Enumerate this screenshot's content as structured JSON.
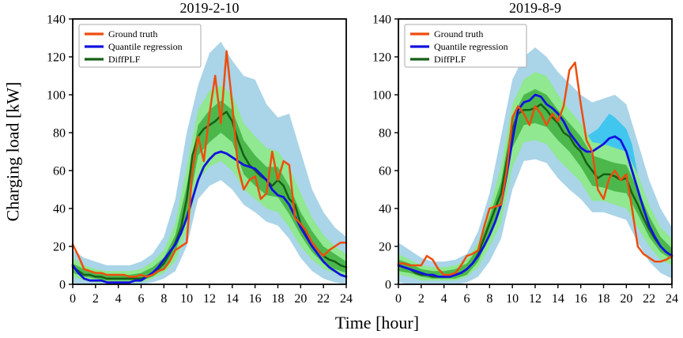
{
  "figure": {
    "ylabel": "Charging load [kW]",
    "xlabel": "Time [hour]",
    "background": "#ffffff",
    "colors": {
      "ground_truth": "#ee4d0d",
      "quantile": "#1212e0",
      "diffplf": "#166016",
      "band_outer": "#aad4e8",
      "band_mid": "#90e890",
      "band_inner": "#4cb84c",
      "band_cyan": "#2fc3f0"
    }
  },
  "chart_data": [
    {
      "type": "line",
      "title": "2019-2-10",
      "xlabel": "Time [hour]",
      "ylabel": "Charging load [kW]",
      "xlim": [
        0,
        24
      ],
      "ylim": [
        0,
        140
      ],
      "xticks": [
        0,
        2,
        4,
        6,
        8,
        10,
        12,
        14,
        16,
        18,
        20,
        22,
        24
      ],
      "yticks": [
        0,
        20,
        40,
        60,
        80,
        100,
        120,
        140
      ],
      "x_step": 0.5,
      "grid": false,
      "legend_position": "upper-left",
      "series": [
        {
          "name": "Ground truth",
          "color_key": "ground_truth",
          "values": [
            21,
            15,
            8,
            7,
            6,
            6,
            5,
            5,
            5,
            5,
            4,
            4,
            5,
            4,
            5,
            7,
            8,
            12,
            18,
            20,
            22,
            60,
            78,
            65,
            90,
            110,
            85,
            123,
            95,
            62,
            50,
            55,
            57,
            45,
            48,
            70,
            55,
            65,
            63,
            35,
            32,
            28,
            22,
            18,
            15,
            18,
            20,
            22,
            22
          ]
        },
        {
          "name": "Quantile regression",
          "color_key": "quantile",
          "values": [
            10,
            6,
            3,
            2,
            2,
            2,
            1,
            1,
            1,
            1,
            1,
            2,
            2,
            4,
            6,
            9,
            13,
            17,
            21,
            27,
            35,
            45,
            55,
            62,
            66,
            69,
            70,
            69,
            67,
            65,
            63,
            62,
            61,
            58,
            55,
            50,
            47,
            46,
            42,
            36,
            30,
            25,
            20,
            16,
            12,
            9,
            7,
            5,
            4
          ]
        },
        {
          "name": "DiffPLF",
          "color_key": "diffplf",
          "values": [
            9,
            7,
            5,
            5,
            4,
            4,
            3,
            3,
            3,
            3,
            3,
            3,
            3,
            4,
            6,
            8,
            11,
            16,
            22,
            30,
            45,
            68,
            78,
            82,
            84,
            86,
            89,
            91,
            86,
            76,
            68,
            63,
            60,
            57,
            55,
            52,
            55,
            52,
            45,
            42,
            32,
            26,
            22,
            18,
            15,
            13,
            12,
            10,
            9
          ]
        }
      ],
      "bands": [
        {
          "name": "outer-prediction-interval",
          "color_key": "band_outer",
          "x_step": 1,
          "lower": [
            0,
            0,
            0,
            0,
            0,
            0,
            0,
            1,
            3,
            7,
            20,
            45,
            52,
            55,
            50,
            42,
            38,
            33,
            31,
            24,
            14,
            7,
            3,
            1,
            0
          ],
          "upper": [
            18,
            14,
            12,
            10,
            10,
            10,
            12,
            16,
            25,
            45,
            80,
            105,
            122,
            128,
            118,
            110,
            108,
            95,
            88,
            90,
            70,
            50,
            38,
            30,
            25
          ]
        },
        {
          "name": "mid-prediction-interval",
          "color_key": "band_mid",
          "x_step": 1,
          "lower": [
            4,
            2,
            1,
            1,
            1,
            1,
            1,
            3,
            6,
            12,
            28,
            55,
            62,
            65,
            60,
            50,
            45,
            40,
            38,
            30,
            20,
            13,
            8,
            6,
            4
          ],
          "upper": [
            14,
            10,
            8,
            7,
            7,
            7,
            8,
            12,
            18,
            32,
            62,
            92,
            102,
            105,
            100,
            85,
            78,
            72,
            70,
            62,
            48,
            35,
            26,
            20,
            16
          ]
        },
        {
          "name": "inner-prediction-interval",
          "color_key": "band_inner",
          "x_step": 1,
          "lower": [
            6,
            4,
            3,
            2,
            2,
            2,
            2,
            4,
            8,
            17,
            36,
            68,
            75,
            80,
            75,
            58,
            52,
            47,
            46,
            37,
            26,
            17,
            11,
            8,
            6
          ],
          "upper": [
            11,
            8,
            6,
            5,
            5,
            5,
            6,
            9,
            14,
            26,
            52,
            84,
            92,
            97,
            92,
            76,
            68,
            62,
            62,
            52,
            38,
            28,
            20,
            16,
            12
          ]
        }
      ]
    },
    {
      "type": "line",
      "title": "2019-8-9",
      "xlabel": "Time [hour]",
      "ylabel": "Charging load [kW]",
      "xlim": [
        0,
        24
      ],
      "ylim": [
        0,
        140
      ],
      "xticks": [
        0,
        2,
        4,
        6,
        8,
        10,
        12,
        14,
        16,
        18,
        20,
        22,
        24
      ],
      "yticks": [
        0,
        20,
        40,
        60,
        80,
        100,
        120,
        140
      ],
      "x_step": 0.5,
      "grid": false,
      "legend_position": "upper-left",
      "series": [
        {
          "name": "Ground truth",
          "color_key": "ground_truth",
          "values": [
            11,
            11,
            10,
            10,
            10,
            15,
            13,
            8,
            5,
            5,
            6,
            10,
            15,
            16,
            18,
            30,
            40,
            41,
            42,
            60,
            88,
            94,
            90,
            84,
            94,
            90,
            84,
            90,
            86,
            94,
            113,
            117,
            95,
            76,
            70,
            50,
            45,
            56,
            60,
            55,
            58,
            40,
            20,
            16,
            14,
            12,
            12,
            13,
            15
          ]
        },
        {
          "name": "Quantile regression",
          "color_key": "quantile",
          "values": [
            10,
            9,
            8,
            7,
            6,
            5,
            5,
            4,
            4,
            4,
            5,
            6,
            8,
            11,
            15,
            20,
            26,
            33,
            42,
            58,
            76,
            92,
            96,
            97,
            100,
            99,
            95,
            93,
            90,
            86,
            80,
            76,
            72,
            70,
            70,
            72,
            74,
            77,
            78,
            76,
            70,
            60,
            50,
            40,
            31,
            25,
            20,
            17,
            15
          ]
        },
        {
          "name": "DiffPLF",
          "color_key": "diffplf",
          "values": [
            10,
            9,
            8,
            6,
            5,
            5,
            4,
            4,
            4,
            4,
            5,
            6,
            8,
            11,
            16,
            24,
            32,
            40,
            48,
            65,
            82,
            90,
            92,
            92,
            93,
            95,
            92,
            88,
            85,
            80,
            78,
            73,
            70,
            64,
            60,
            56,
            58,
            58,
            57,
            55,
            56,
            48,
            42,
            35,
            29,
            24,
            20,
            17,
            15
          ]
        }
      ],
      "bands": [
        {
          "name": "outer-prediction-interval",
          "color_key": "band_outer",
          "x_step": 1,
          "lower": [
            1,
            0,
            0,
            0,
            0,
            0,
            1,
            4,
            12,
            24,
            50,
            65,
            66,
            64,
            56,
            50,
            45,
            38,
            38,
            36,
            34,
            22,
            12,
            6,
            3
          ],
          "upper": [
            22,
            18,
            14,
            12,
            12,
            13,
            16,
            28,
            48,
            78,
            108,
            120,
            125,
            120,
            112,
            106,
            100,
            96,
            98,
            100,
            95,
            75,
            55,
            40,
            30
          ]
        },
        {
          "name": "highlight-interval",
          "color_key": "band_cyan",
          "opacity": 0.85,
          "x": [
            16.5,
            17,
            17.5,
            18,
            18.5,
            19,
            19.5,
            20,
            20.5,
            21
          ],
          "lower": [
            66,
            64,
            62,
            64,
            66,
            66,
            64,
            60,
            52,
            42
          ],
          "upper": [
            78,
            80,
            82,
            86,
            90,
            88,
            85,
            82,
            74,
            58
          ]
        },
        {
          "name": "mid-prediction-interval",
          "color_key": "band_mid",
          "x_step": 1,
          "lower": [
            5,
            4,
            2,
            2,
            2,
            2,
            4,
            9,
            20,
            32,
            62,
            75,
            76,
            74,
            66,
            60,
            54,
            44,
            44,
            42,
            40,
            30,
            20,
            13,
            10
          ],
          "upper": [
            16,
            13,
            10,
            9,
            9,
            10,
            13,
            22,
            40,
            62,
            95,
            108,
            112,
            110,
            100,
            92,
            85,
            75,
            74,
            72,
            70,
            58,
            42,
            30,
            24
          ]
        },
        {
          "name": "inner-prediction-interval",
          "color_key": "band_inner",
          "x_step": 1,
          "lower": [
            7,
            6,
            4,
            3,
            3,
            3,
            5,
            12,
            26,
            40,
            72,
            84,
            85,
            83,
            76,
            70,
            62,
            52,
            51,
            49,
            48,
            37,
            25,
            17,
            13
          ],
          "upper": [
            13,
            11,
            8,
            7,
            7,
            8,
            11,
            19,
            36,
            54,
            88,
            100,
            103,
            100,
            92,
            85,
            78,
            68,
            66,
            64,
            63,
            50,
            36,
            25,
            19
          ]
        }
      ]
    }
  ]
}
